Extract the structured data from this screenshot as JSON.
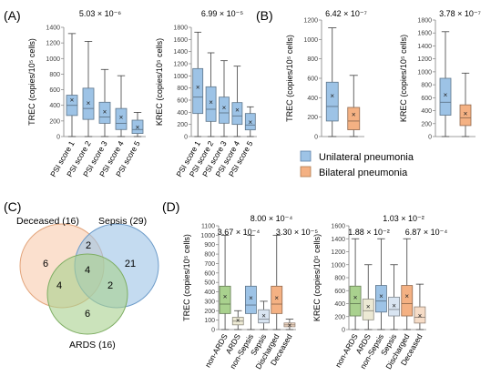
{
  "panel_labels": [
    "(A)",
    "(B)",
    "(C)",
    "(D)"
  ],
  "legend": {
    "items": [
      {
        "label": "Unilateral pneumonia",
        "color": "#9dc3e6"
      },
      {
        "label": "Bilateral pneumonia",
        "color": "#f4b183"
      }
    ]
  },
  "venn": {
    "sets": [
      {
        "label": "Deceased (16)",
        "color": "#f8cbad"
      },
      {
        "label": "Sepsis (29)",
        "color": "#9dc3e6"
      },
      {
        "label": "ARDS (16)",
        "color": "#a9d18e"
      }
    ],
    "regions": {
      "deceased_only": "6",
      "sepsis_only": "21",
      "ards_only": "6",
      "deceased_sepsis": "2",
      "deceased_ards": "4",
      "sepsis_ards": "2",
      "all": "4"
    }
  },
  "chart_data": [
    {
      "panel": "(A)",
      "type": "box",
      "ylabel": "TREC (copies/10⁵ cells)",
      "ylim": [
        0,
        1400
      ],
      "yticks": [
        0,
        200,
        400,
        600,
        800,
        1000,
        1200,
        1400
      ],
      "categories": [
        "PSI score 1",
        "PSI score 2",
        "PSI score 3",
        "PSI score 4",
        "PSI score 5"
      ],
      "annotations": [
        "5.03 × 10⁻⁶"
      ],
      "series": [
        {
          "color": "#9dc3e6",
          "boxes": [
            {
              "min": 0,
              "q1": 270,
              "median": 400,
              "q3": 530,
              "max": 1320,
              "mean": 470
            },
            {
              "min": 0,
              "q1": 220,
              "median": 360,
              "q3": 620,
              "max": 1220,
              "mean": 430
            },
            {
              "min": 0,
              "q1": 170,
              "median": 250,
              "q3": 440,
              "max": 860,
              "mean": 320
            },
            {
              "min": 0,
              "q1": 90,
              "median": 170,
              "q3": 360,
              "max": 780,
              "mean": 250
            },
            {
              "min": 0,
              "q1": 40,
              "median": 90,
              "q3": 210,
              "max": 310,
              "mean": 120
            }
          ]
        }
      ]
    },
    {
      "panel": "(A)",
      "type": "box",
      "ylabel": "KREC (copies/10⁵ cells)",
      "ylim": [
        0,
        1800
      ],
      "yticks": [
        0,
        200,
        400,
        600,
        800,
        1000,
        1200,
        1400,
        1600,
        1800
      ],
      "categories": [
        "PSI score 1",
        "PSI score 2",
        "PSI score 3",
        "PSI score 4",
        "PSI score 5"
      ],
      "annotations": [
        "6.99 × 10⁻⁵"
      ],
      "series": [
        {
          "color": "#9dc3e6",
          "boxes": [
            {
              "min": 0,
              "q1": 380,
              "median": 650,
              "q3": 1120,
              "max": 1720,
              "mean": 820
            },
            {
              "min": 0,
              "q1": 250,
              "median": 450,
              "q3": 820,
              "max": 1380,
              "mean": 570
            },
            {
              "min": 0,
              "q1": 220,
              "median": 390,
              "q3": 650,
              "max": 1250,
              "mean": 480
            },
            {
              "min": 0,
              "q1": 200,
              "median": 340,
              "q3": 560,
              "max": 1160,
              "mean": 440
            },
            {
              "min": 0,
              "q1": 110,
              "median": 190,
              "q3": 380,
              "max": 490,
              "mean": 240
            }
          ]
        }
      ]
    },
    {
      "panel": "(B)",
      "type": "box",
      "ylabel": "TREC (copies/10⁵ cells)",
      "ylim": [
        0,
        1200
      ],
      "yticks": [
        0,
        200,
        400,
        600,
        800,
        1000,
        1200
      ],
      "categories": [
        "Unilateral pneumonia",
        "Bilateral pneumonia"
      ],
      "annotations": [
        "6.42 × 10⁻⁷"
      ],
      "series": [
        {
          "color": "#9dc3e6",
          "boxes": [
            {
              "min": 0,
              "q1": 160,
              "median": 310,
              "q3": 560,
              "max": 1120,
              "mean": 420
            },
            {
              "min": 0,
              "q1": 70,
              "median": 160,
              "q3": 300,
              "max": 630,
              "mean": 230
            }
          ]
        }
      ]
    },
    {
      "panel": "(B)",
      "type": "box",
      "ylabel": "KREC (copies/10⁵ cells)",
      "ylim": [
        0,
        1800
      ],
      "yticks": [
        0,
        200,
        400,
        600,
        800,
        1000,
        1200,
        1400,
        1600,
        1800
      ],
      "categories": [
        "Unilateral pneumonia",
        "Bilateral pneumonia"
      ],
      "annotations": [
        "3.78 × 10⁻⁷"
      ],
      "series": [
        {
          "color": "#9dc3e6",
          "boxes": [
            {
              "min": 0,
              "q1": 330,
              "median": 530,
              "q3": 900,
              "max": 1620,
              "mean": 650
            },
            {
              "min": 0,
              "q1": 170,
              "median": 290,
              "q3": 490,
              "max": 980,
              "mean": 360
            }
          ]
        }
      ]
    },
    {
      "panel": "(D)",
      "type": "box",
      "ylabel": "TREC (copies/10⁵ cells)",
      "ylim": [
        0,
        1100
      ],
      "yticks": [
        0,
        100,
        200,
        300,
        400,
        500,
        600,
        700,
        800,
        900,
        1000,
        1100
      ],
      "categories": [
        "non-ARDS",
        "ARDS",
        "non-Sepsis",
        "Sepsis",
        "Discharged",
        "Deceased"
      ],
      "annotations": [
        "3.67 × 10⁻⁴",
        "8.00 × 10⁻⁴",
        "3.30 × 10⁻⁵"
      ],
      "series": [
        {
          "color": "#a9d18e",
          "boxes": [
            {
              "min": 0,
              "q1": 170,
              "median": 270,
              "q3": 460,
              "max": 1000,
              "mean": 350
            },
            {
              "min": 0,
              "q1": 50,
              "median": 90,
              "q3": 130,
              "max": 200,
              "mean": 100
            },
            {
              "min": 0,
              "q1": 170,
              "median": 260,
              "q3": 460,
              "max": 1000,
              "mean": 340
            },
            {
              "min": 0,
              "q1": 70,
              "median": 110,
              "q3": 210,
              "max": 300,
              "mean": 150
            },
            {
              "min": 0,
              "q1": 170,
              "median": 270,
              "q3": 460,
              "max": 1000,
              "mean": 340
            },
            {
              "min": 0,
              "q1": 30,
              "median": 50,
              "q3": 70,
              "max": 110,
              "mean": 50
            }
          ]
        }
      ]
    },
    {
      "panel": "(D)",
      "type": "box",
      "ylabel": "KREC (copies/10⁵ cells)",
      "ylim": [
        0,
        1600
      ],
      "yticks": [
        0,
        200,
        400,
        600,
        800,
        1000,
        1200,
        1400,
        1600
      ],
      "categories": [
        "non-ARDS",
        "ARDS",
        "non-Sepsis",
        "Sepsis",
        "Discharged",
        "Deceased"
      ],
      "annotations": [
        "1.88 × 10⁻²",
        "1.03 × 10⁻²",
        "6.87 × 10⁻⁴"
      ],
      "series": [
        {
          "color": "#a9d18e",
          "boxes": [
            {
              "min": 0,
              "q1": 210,
              "median": 400,
              "q3": 670,
              "max": 1400,
              "mean": 500
            },
            {
              "min": 0,
              "q1": 150,
              "median": 290,
              "q3": 470,
              "max": 1000,
              "mean": 360
            },
            {
              "min": 0,
              "q1": 270,
              "median": 440,
              "q3": 680,
              "max": 1400,
              "mean": 520
            },
            {
              "min": 0,
              "q1": 210,
              "median": 310,
              "q3": 500,
              "max": 1000,
              "mean": 370
            },
            {
              "min": 0,
              "q1": 210,
              "median": 400,
              "q3": 680,
              "max": 1400,
              "mean": 520
            },
            {
              "min": 0,
              "q1": 100,
              "median": 190,
              "q3": 350,
              "max": 700,
              "mean": 220
            }
          ]
        }
      ]
    }
  ]
}
